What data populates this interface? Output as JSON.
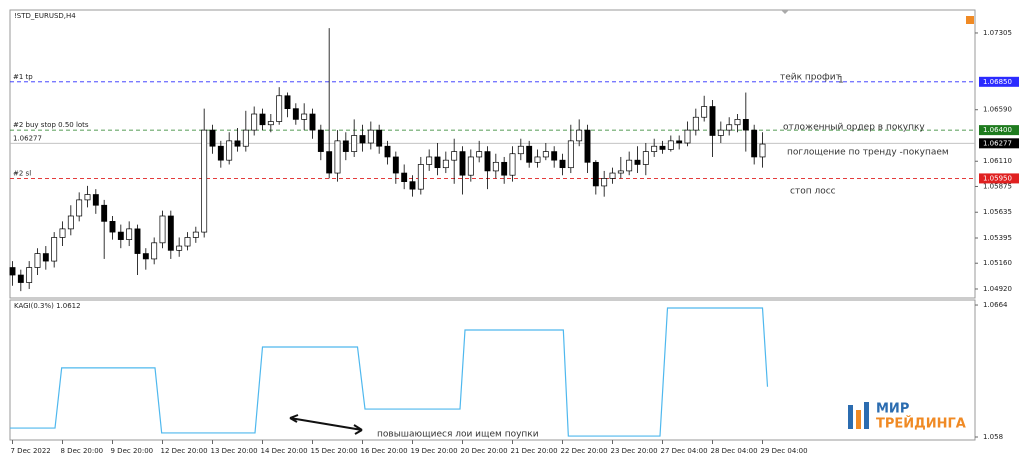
{
  "chart_data": [
    {
      "type": "candlestick",
      "title": "!STD_EURUSD,H4",
      "open": [
        1.0512,
        1.0505,
        1.0498,
        1.0512,
        1.0525,
        1.0518,
        1.054,
        1.0548,
        1.056,
        1.0575,
        1.058,
        1.057,
        1.0555,
        1.0545,
        1.0538,
        1.0548,
        1.0525,
        1.052,
        1.0535,
        1.056,
        1.0528,
        1.0532,
        1.054,
        1.0545,
        1.064,
        1.0625,
        1.0612,
        1.063,
        1.0625,
        1.064,
        1.0655,
        1.0645,
        1.0648,
        1.0672,
        1.066,
        1.065,
        1.0655,
        1.064,
        1.062,
        1.06,
        1.063,
        1.062,
        1.0635,
        1.0628,
        1.064,
        1.0625,
        1.0615,
        1.06,
        1.0592,
        1.0585,
        1.0608,
        1.0615,
        1.0605,
        1.0612,
        1.062,
        1.0598,
        1.0615,
        1.062,
        1.0602,
        1.061,
        1.0598,
        1.0618,
        1.0625,
        1.061,
        1.0615,
        1.062,
        1.0612,
        1.0605,
        1.063,
        1.064,
        1.061,
        1.0588,
        1.0595,
        1.06,
        1.0602,
        1.0612,
        1.0608,
        1.062,
        1.0625,
        1.0622,
        1.063,
        1.0628,
        1.064,
        1.0652,
        1.0662,
        1.0635,
        1.064,
        1.0645,
        1.065,
        1.064,
        1.0615
      ],
      "high": [
        1.0518,
        1.051,
        1.0518,
        1.053,
        1.0532,
        1.0545,
        1.0555,
        1.057,
        1.0582,
        1.0588,
        1.0585,
        1.0575,
        1.056,
        1.0552,
        1.0555,
        1.0552,
        1.053,
        1.054,
        1.0565,
        1.0565,
        1.054,
        1.0545,
        1.055,
        1.066,
        1.0645,
        1.063,
        1.0638,
        1.0642,
        1.0658,
        1.0662,
        1.066,
        1.0655,
        1.068,
        1.0675,
        1.0665,
        1.0665,
        1.066,
        1.0645,
        1.0735,
        1.064,
        1.0638,
        1.065,
        1.0645,
        1.0648,
        1.0645,
        1.063,
        1.062,
        1.0608,
        1.0598,
        1.0615,
        1.0622,
        1.0628,
        1.062,
        1.0632,
        1.0625,
        1.0622,
        1.063,
        1.0625,
        1.0618,
        1.0615,
        1.0625,
        1.0632,
        1.063,
        1.0622,
        1.0628,
        1.0625,
        1.0618,
        1.0645,
        1.065,
        1.0645,
        1.0612,
        1.0602,
        1.0605,
        1.0615,
        1.062,
        1.0625,
        1.0628,
        1.0632,
        1.063,
        1.0635,
        1.0635,
        1.0648,
        1.066,
        1.0672,
        1.0668,
        1.0648,
        1.0652,
        1.0655,
        1.0675,
        1.0645,
        1.0638
      ],
      "low": [
        1.0495,
        1.049,
        1.0492,
        1.0505,
        1.051,
        1.0512,
        1.0532,
        1.0542,
        1.0555,
        1.0568,
        1.0562,
        1.052,
        1.0538,
        1.053,
        1.0532,
        1.0505,
        1.051,
        1.0515,
        1.053,
        1.052,
        1.0522,
        1.0528,
        1.0535,
        1.054,
        1.0618,
        1.0605,
        1.0608,
        1.062,
        1.062,
        1.0635,
        1.064,
        1.0638,
        1.0645,
        1.0652,
        1.0645,
        1.064,
        1.0632,
        1.0612,
        1.0595,
        1.0592,
        1.0612,
        1.0615,
        1.062,
        1.0622,
        1.0618,
        1.0608,
        1.059,
        1.0585,
        1.0578,
        1.058,
        1.0602,
        1.0598,
        1.06,
        1.059,
        1.058,
        1.0592,
        1.061,
        1.0585,
        1.0595,
        1.059,
        1.0592,
        1.0612,
        1.0605,
        1.0605,
        1.0612,
        1.0605,
        1.0598,
        1.06,
        1.0625,
        1.06,
        1.058,
        1.0578,
        1.059,
        1.0595,
        1.0598,
        1.06,
        1.0598,
        1.0615,
        1.0618,
        1.062,
        1.0622,
        1.0625,
        1.0635,
        1.0648,
        1.0615,
        1.0628,
        1.0635,
        1.0638,
        1.062,
        1.0608,
        1.0605
      ],
      "close": [
        1.0505,
        1.0498,
        1.0512,
        1.0525,
        1.0518,
        1.054,
        1.0548,
        1.056,
        1.0575,
        1.058,
        1.057,
        1.0555,
        1.0545,
        1.0538,
        1.0548,
        1.0525,
        1.052,
        1.0535,
        1.056,
        1.0528,
        1.0532,
        1.054,
        1.0545,
        1.064,
        1.0625,
        1.0612,
        1.063,
        1.0625,
        1.064,
        1.0655,
        1.0645,
        1.0648,
        1.0672,
        1.066,
        1.065,
        1.0655,
        1.064,
        1.062,
        1.06,
        1.063,
        1.062,
        1.0635,
        1.0628,
        1.064,
        1.0625,
        1.0615,
        1.06,
        1.0592,
        1.0585,
        1.0608,
        1.0615,
        1.0605,
        1.0612,
        1.062,
        1.0598,
        1.0615,
        1.062,
        1.0602,
        1.061,
        1.0598,
        1.0618,
        1.0625,
        1.061,
        1.0615,
        1.062,
        1.0612,
        1.0605,
        1.063,
        1.064,
        1.061,
        1.0588,
        1.0595,
        1.06,
        1.0602,
        1.0612,
        1.0608,
        1.062,
        1.0625,
        1.0622,
        1.063,
        1.0628,
        1.064,
        1.0652,
        1.0662,
        1.0635,
        1.064,
        1.0645,
        1.065,
        1.064,
        1.0615,
        1.0627
      ],
      "up_color": "#ffffff",
      "down_color": "#000000",
      "xlim": [
        -0.3,
        115.5
      ],
      "ylim": [
        1.04836,
        1.07519
      ],
      "yticks": [
        1.07305,
        {
          "value": 1.0659,
          "label": "1.06590"
        },
        {
          "value": 1.0611,
          "label": "1.06110"
        },
        1.05875,
        1.05635,
        1.05395,
        {
          "value": 1.0516,
          "label": "1.05160"
        },
        {
          "value": 1.0492,
          "label": "1.04920"
        }
      ],
      "levels": [
        {
          "name": "#1 tp",
          "value": 1.0685,
          "label": "1.06850",
          "color": "#2b2bff",
          "dashed": true
        },
        {
          "name": "#2 buy stop 0.50 lots",
          "value": 1.064,
          "label": "1.06400",
          "color": "#1e7b1e",
          "dashed": true
        },
        {
          "name": "1.06277",
          "value": 1.06277,
          "label": "1.06277",
          "color": "#000000",
          "dashed": false
        },
        {
          "name": "#2 sl",
          "value": 1.0595,
          "label": "1.05950",
          "color": "#e02020",
          "dashed": true
        }
      ],
      "annotations": [
        "тейк профит",
        "1",
        "отложенный ордер в покупку",
        "поглощение по тренду -покупаем",
        "стоп лосс"
      ]
    },
    {
      "type": "line",
      "title": "KAGI(0.3%) 1.0612",
      "color": "#4fb8ee",
      "x": [
        -0.3,
        5.1,
        5.9,
        17.1,
        17.9,
        29.1,
        30,
        41.4,
        42.3,
        53.7,
        54.3,
        66.1,
        66.7,
        77.7,
        78.6,
        90,
        90.6
      ],
      "values": [
        1.05857,
        1.05857,
        1.0624,
        1.0624,
        1.05826,
        1.05826,
        1.06373,
        1.06373,
        1.05978,
        1.05978,
        1.06481,
        1.06481,
        1.05806,
        1.05806,
        1.06621,
        1.06621,
        1.0612
      ],
      "xlim": [
        -0.3,
        115.5
      ],
      "ylim": [
        1.05781,
        1.06672
      ],
      "yticks": [
        1.0664,
        1.058
      ],
      "xticks": [
        {
          "value": 0,
          "label": "7 Dec 2022"
        },
        {
          "value": 6,
          "label": "8 Dec 20:00"
        },
        {
          "value": 12,
          "label": "9 Dec 20:00"
        },
        {
          "value": 18,
          "label": "12 Dec 20:00"
        },
        {
          "value": 24,
          "label": "13 Dec 20:00"
        },
        {
          "value": 30,
          "label": "14 Dec 20:00"
        },
        {
          "value": 36,
          "label": "15 Dec 20:00"
        },
        {
          "value": 42,
          "label": "16 Dec 20:00"
        },
        {
          "value": 48,
          "label": "19 Dec 20:00"
        },
        {
          "value": 54,
          "label": "20 Dec 20:00"
        },
        {
          "value": 60,
          "label": "21 Dec 20:00"
        },
        {
          "value": 66,
          "label": "22 Dec 20:00"
        },
        {
          "value": 72,
          "label": "23 Dec 20:00"
        },
        {
          "value": 78,
          "label": "27 Dec 04:00"
        },
        {
          "value": 84,
          "label": "28 Dec 04:00"
        },
        {
          "value": 90,
          "label": "29 Dec 04:00"
        }
      ],
      "annotations": [
        "повышающиеся лои ищем поупки"
      ]
    }
  ],
  "logo": {
    "line1": "МИР",
    "line2": "ТРЕЙДИНГА"
  }
}
